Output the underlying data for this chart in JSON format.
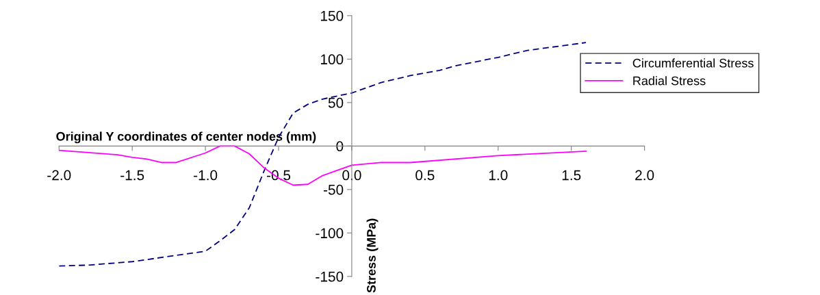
{
  "chart_data": {
    "type": "line",
    "xlabel": "Original Y coordinates of center nodes (mm)",
    "ylabel": "Stress (MPa)",
    "xlim": [
      -2.0,
      2.0
    ],
    "xticks": [
      {
        "value": -2.0,
        "label": "-2.0"
      },
      {
        "value": -1.5,
        "label": "-1.5"
      },
      {
        "value": -1.0,
        "label": "-1.0"
      },
      {
        "value": -0.5,
        "label": "-0.5"
      },
      {
        "value": 0.0,
        "label": "0.0"
      },
      {
        "value": 0.5,
        "label": "0.5"
      },
      {
        "value": 1.0,
        "label": "1.0"
      },
      {
        "value": 1.5,
        "label": "1.5"
      },
      {
        "value": 2.0,
        "label": "2.0"
      }
    ],
    "ylim": [
      -150,
      150
    ],
    "yticks": [
      -150,
      -100,
      -50,
      0,
      50,
      100,
      150
    ],
    "grid": false,
    "legend": "right",
    "marker": "none",
    "series": [
      {
        "name": "Circumferential Stress",
        "color": "#000080",
        "line_style": "dashed",
        "x": [
          -2.0,
          -1.8,
          -1.5,
          -1.0,
          -0.9,
          -0.8,
          -0.7,
          -0.6,
          -0.5,
          -0.4,
          -0.3,
          -0.2,
          0.0,
          0.2,
          0.4,
          0.6,
          0.7,
          1.0,
          1.2,
          1.6
        ],
        "values": [
          -138,
          -137,
          -133,
          -121,
          -109,
          -96,
          -71,
          -29,
          10,
          38,
          48,
          54,
          61,
          73,
          81,
          87,
          92,
          102,
          110,
          119
        ]
      },
      {
        "name": "Radial Stress",
        "color": "#ff00ff",
        "line_style": "solid",
        "x": [
          -2.0,
          -1.6,
          -1.5,
          -1.4,
          -1.3,
          -1.2,
          -1.0,
          -0.9,
          -0.8,
          -0.7,
          -0.6,
          -0.5,
          -0.4,
          -0.3,
          -0.2,
          -0.1,
          0.0,
          0.2,
          0.4,
          1.0,
          1.6
        ],
        "values": [
          -5,
          -10,
          -13,
          -15,
          -19,
          -19,
          -8,
          0,
          0,
          -9,
          -25,
          -37,
          -45,
          -44,
          -34,
          -28,
          -22,
          -19,
          -19,
          -11,
          -6
        ]
      }
    ]
  }
}
